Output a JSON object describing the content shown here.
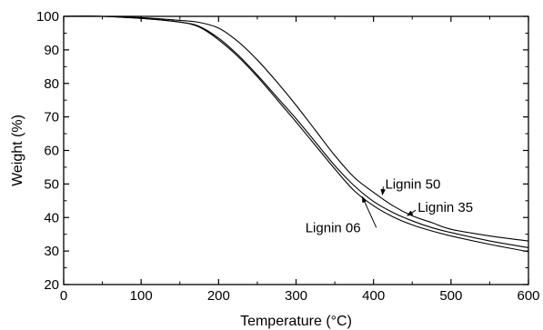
{
  "chart_data": {
    "type": "line",
    "title": "",
    "xlabel": "Temperature (°C)",
    "ylabel": "Weight (%)",
    "xlim": [
      0,
      600
    ],
    "ylim": [
      20,
      100
    ],
    "xticks": [
      0,
      100,
      200,
      300,
      400,
      500,
      600
    ],
    "yticks": [
      20,
      30,
      40,
      50,
      60,
      70,
      80,
      90,
      100
    ],
    "grid": false,
    "legend": "none",
    "series": [
      {
        "name": "Lignin 50",
        "x": [
          0,
          50,
          100,
          150,
          175,
          200,
          225,
          250,
          275,
          300,
          325,
          350,
          375,
          400,
          425,
          450,
          475,
          500,
          550,
          600
        ],
        "y": [
          100,
          100,
          99.6,
          98.8,
          98.2,
          96.5,
          92.5,
          87,
          80.5,
          73.5,
          66,
          58.5,
          52,
          47.5,
          43.5,
          40.5,
          38.5,
          36.5,
          34.5,
          33
        ]
      },
      {
        "name": "Lignin 35",
        "x": [
          0,
          50,
          100,
          150,
          175,
          200,
          225,
          250,
          275,
          300,
          325,
          350,
          375,
          400,
          425,
          450,
          475,
          500,
          550,
          600
        ],
        "y": [
          100,
          100,
          99.4,
          98.3,
          97,
          93.5,
          88.5,
          82.5,
          76,
          69.5,
          62.5,
          55.5,
          49.5,
          44.8,
          41.5,
          39,
          37,
          35.5,
          33,
          31
        ]
      },
      {
        "name": "Lignin 06",
        "x": [
          0,
          50,
          100,
          150,
          175,
          200,
          225,
          250,
          275,
          300,
          325,
          350,
          375,
          400,
          425,
          450,
          475,
          500,
          550,
          600
        ],
        "y": [
          100,
          100,
          99.4,
          98.3,
          96.8,
          93,
          88,
          82,
          75.3,
          68.5,
          61.5,
          54.5,
          48,
          43.5,
          40.2,
          37.8,
          36,
          34.5,
          32,
          29.8
        ]
      }
    ],
    "annotations": [
      {
        "text": "Lignin 50",
        "target": "Lignin 50",
        "at_x": 408,
        "text_x": 415,
        "text_y": 50
      },
      {
        "text": "Lignin 35",
        "target": "Lignin 35",
        "at_x": 440,
        "text_x": 457,
        "text_y": 43
      },
      {
        "text": "Lignin 06",
        "target": "Lignin 06",
        "at_x": 382,
        "text_x": 312,
        "text_y": 37
      }
    ]
  }
}
